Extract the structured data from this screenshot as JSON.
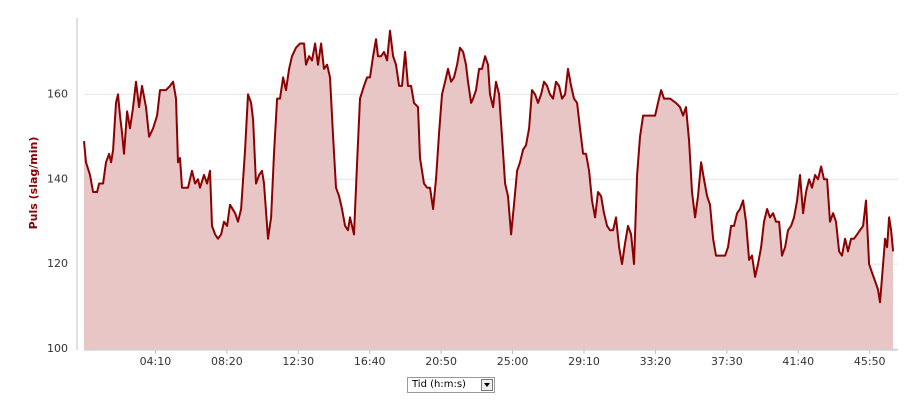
{
  "chart_data": {
    "type": "area",
    "y_label": "Puls (slag/min)",
    "x_selector": "Tid (h:m:s)",
    "color": "#8b0000",
    "fill": "#e9c6c6",
    "grid": true,
    "xlim": [
      0,
      2849
    ],
    "ylim": [
      100,
      178
    ],
    "yticks": [
      100,
      120,
      140,
      160
    ],
    "xticks": [
      {
        "value": 250,
        "label": "04:10"
      },
      {
        "value": 500,
        "label": "08:20"
      },
      {
        "value": 750,
        "label": "12:30"
      },
      {
        "value": 1000,
        "label": "16:40"
      },
      {
        "value": 1250,
        "label": "20:50"
      },
      {
        "value": 1500,
        "label": "25:00"
      },
      {
        "value": 1750,
        "label": "29:10"
      },
      {
        "value": 2000,
        "label": "33:20"
      },
      {
        "value": 2250,
        "label": "37:30"
      },
      {
        "value": 2500,
        "label": "41:40"
      },
      {
        "value": 2750,
        "label": "45:50"
      }
    ],
    "x": [
      0,
      7,
      21,
      32,
      46,
      53,
      67,
      77,
      88,
      95,
      102,
      112,
      119,
      126,
      133,
      140,
      151,
      161,
      172,
      182,
      193,
      203,
      217,
      228,
      242,
      256,
      266,
      287,
      301,
      312,
      322,
      329,
      336,
      343,
      364,
      378,
      389,
      399,
      406,
      420,
      431,
      441,
      448,
      459,
      469,
      480,
      490,
      501,
      511,
      529,
      539,
      550,
      564,
      574,
      585,
      592,
      602,
      613,
      623,
      630,
      644,
      655,
      665,
      676,
      686,
      697,
      707,
      718,
      728,
      742,
      756,
      770,
      777,
      788,
      798,
      809,
      819,
      830,
      840,
      851,
      861,
      872,
      882,
      893,
      903,
      914,
      924,
      931,
      945,
      956,
      966,
      980,
      991,
      1001,
      1012,
      1022,
      1029,
      1040,
      1050,
      1061,
      1071,
      1082,
      1092,
      1103,
      1113,
      1124,
      1134,
      1145,
      1155,
      1169,
      1176,
      1190,
      1201,
      1211,
      1222,
      1232,
      1243,
      1253,
      1264,
      1274,
      1285,
      1295,
      1306,
      1316,
      1327,
      1337,
      1344,
      1355,
      1362,
      1372,
      1383,
      1393,
      1404,
      1414,
      1421,
      1432,
      1442,
      1453,
      1463,
      1474,
      1484,
      1495,
      1505,
      1516,
      1526,
      1537,
      1547,
      1558,
      1568,
      1579,
      1589,
      1600,
      1610,
      1621,
      1631,
      1642,
      1652,
      1663,
      1673,
      1684,
      1694,
      1705,
      1715,
      1726,
      1736,
      1747,
      1757,
      1768,
      1778,
      1789,
      1799,
      1810,
      1820,
      1831,
      1841,
      1852,
      1862,
      1873,
      1883,
      1894,
      1904,
      1915,
      1925,
      1936,
      1946,
      1957,
      1967,
      1988,
      1999,
      2009,
      2020,
      2030,
      2051,
      2072,
      2086,
      2097,
      2107,
      2118,
      2128,
      2139,
      2149,
      2160,
      2170,
      2181,
      2191,
      2202,
      2212,
      2244,
      2254,
      2265,
      2275,
      2286,
      2296,
      2307,
      2317,
      2328,
      2338,
      2349,
      2359,
      2370,
      2380,
      2391,
      2401,
      2412,
      2422,
      2433,
      2443,
      2454,
      2464,
      2475,
      2485,
      2496,
      2506,
      2517,
      2527,
      2538,
      2548,
      2559,
      2569,
      2580,
      2590,
      2601,
      2611,
      2622,
      2632,
      2643,
      2653,
      2664,
      2674,
      2685,
      2695,
      2706,
      2716,
      2727,
      2737,
      2748,
      2758,
      2769,
      2779,
      2786,
      2797,
      2804,
      2811,
      2818,
      2825,
      2832
    ],
    "values": [
      149,
      144,
      141,
      137,
      137,
      139,
      139,
      144,
      146,
      144,
      147,
      158,
      160,
      155,
      151,
      146,
      156,
      152,
      157,
      163,
      157,
      162,
      157,
      150,
      152,
      155,
      161,
      161,
      162,
      163,
      159,
      144,
      145,
      138,
      138,
      142,
      139,
      140,
      138,
      141,
      139,
      142,
      129,
      127,
      126,
      127,
      130,
      129,
      134,
      132,
      130,
      133,
      147,
      160,
      158,
      154,
      139,
      141,
      142,
      139,
      126,
      131,
      146,
      159,
      159,
      164,
      161,
      166,
      169,
      171,
      172,
      172,
      167,
      169,
      168,
      172,
      167,
      172,
      166,
      167,
      164,
      150,
      138,
      136,
      133,
      129,
      128,
      131,
      127,
      144,
      159,
      162,
      164,
      164,
      169,
      173,
      169,
      169,
      170,
      168,
      175,
      169,
      167,
      162,
      162,
      170,
      162,
      162,
      158,
      157,
      145,
      139,
      138,
      138,
      133,
      140,
      151,
      160,
      163,
      166,
      163,
      164,
      167,
      171,
      170,
      167,
      163,
      158,
      159,
      161,
      166,
      166,
      169,
      167,
      160,
      157,
      163,
      160,
      150,
      139,
      136,
      127,
      134,
      142,
      144,
      147,
      148,
      152,
      161,
      160,
      158,
      160,
      163,
      162,
      160,
      159,
      163,
      162,
      159,
      160,
      166,
      162,
      159,
      158,
      152,
      146,
      146,
      142,
      135,
      131,
      137,
      136,
      132,
      129,
      128,
      128,
      131,
      124,
      120,
      125,
      129,
      127,
      120,
      141,
      150,
      155,
      155,
      155,
      155,
      158,
      161,
      159,
      159,
      158,
      157,
      155,
      157,
      149,
      137,
      131,
      136,
      144,
      140,
      136,
      134,
      126,
      122,
      122,
      124,
      129,
      129,
      132,
      133,
      135,
      130,
      121,
      122,
      117,
      120,
      124,
      130,
      133,
      131,
      132,
      130,
      130,
      122,
      124,
      128,
      129,
      131,
      135,
      141,
      132,
      137,
      140,
      138,
      141,
      140,
      143,
      140,
      140,
      130,
      132,
      130,
      123,
      122,
      126,
      123,
      126,
      126,
      127,
      128,
      129,
      135,
      120,
      118,
      116,
      114,
      111,
      120,
      126,
      124,
      131,
      128,
      123
    ]
  }
}
